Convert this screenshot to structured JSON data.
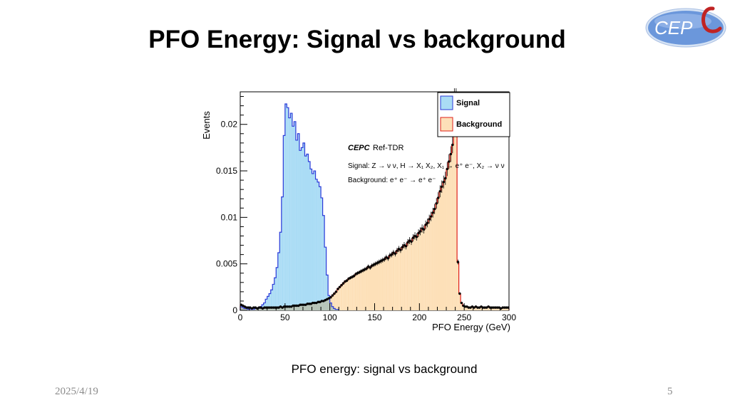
{
  "slide": {
    "title": "PFO Energy: Signal vs background",
    "caption": "PFO energy: signal vs background",
    "date": "2025/4/19",
    "page_number": "5",
    "logo_text": "CEPC"
  },
  "colors": {
    "signal_fill": "#aadcf5",
    "signal_line": "#2b3ad9",
    "background_fill": "#fde0b8",
    "background_line": "#e0201a",
    "overlap_fill": "#b8c4b8",
    "logo_blue": "#5f8fd8"
  },
  "chart_data": {
    "type": "histogram",
    "xlabel": "PFO Energy (GeV)",
    "ylabel": "Events",
    "xlim": [
      0,
      300
    ],
    "ylim": [
      0,
      0.0235
    ],
    "x_ticks": [
      0,
      50,
      100,
      150,
      200,
      250,
      300
    ],
    "y_ticks": [
      0,
      0.005,
      0.01,
      0.015,
      0.02
    ],
    "y_tick_labels": [
      "0",
      "0.005",
      "0.01",
      "0.015",
      "0.02"
    ],
    "bin_width": 2,
    "legend": {
      "position": "top-right",
      "entries": [
        "Signal",
        "Background"
      ]
    },
    "annotations": {
      "experiment": "CEPC",
      "experiment_suffix": "Ref-TDR",
      "signal_process": "Signal: Z → ν ν, H → X₁ X₂, X₁ → e⁺ e⁻, X₂ → ν ν",
      "background_process": "Background: e⁺ e⁻ → e⁺ e⁻"
    },
    "series": [
      {
        "name": "Signal",
        "x": [
          0,
          2,
          4,
          6,
          8,
          10,
          12,
          14,
          16,
          18,
          20,
          22,
          24,
          26,
          28,
          30,
          32,
          34,
          36,
          38,
          40,
          42,
          44,
          46,
          48,
          50,
          52,
          54,
          56,
          58,
          60,
          62,
          64,
          66,
          68,
          70,
          72,
          74,
          76,
          78,
          80,
          82,
          84,
          86,
          88,
          90,
          92,
          94,
          96,
          98,
          100,
          102,
          104,
          106,
          108
        ],
        "y": [
          0.0004,
          0.0003,
          0.0002,
          0.0002,
          0.0001,
          0.0001,
          0.0001,
          0.0001,
          0.0002,
          0.0002,
          0.0003,
          0.0004,
          0.0006,
          0.0008,
          0.0012,
          0.0015,
          0.0018,
          0.0022,
          0.0028,
          0.0035,
          0.0046,
          0.0062,
          0.0084,
          0.0122,
          0.0188,
          0.0222,
          0.0218,
          0.0207,
          0.0212,
          0.0198,
          0.0203,
          0.0183,
          0.019,
          0.0172,
          0.0175,
          0.018,
          0.0166,
          0.0168,
          0.016,
          0.0152,
          0.0147,
          0.015,
          0.0141,
          0.0138,
          0.0133,
          0.0121,
          0.0102,
          0.0068,
          0.0038,
          0.0016,
          0.0008,
          0.0004,
          0.0002,
          0.0001,
          0.0001
        ]
      },
      {
        "name": "Background",
        "x": [
          0,
          2,
          4,
          6,
          8,
          10,
          12,
          14,
          16,
          18,
          20,
          22,
          24,
          26,
          28,
          30,
          32,
          34,
          36,
          38,
          40,
          42,
          44,
          46,
          48,
          50,
          52,
          54,
          56,
          58,
          60,
          62,
          64,
          66,
          68,
          70,
          72,
          74,
          76,
          78,
          80,
          82,
          84,
          86,
          88,
          90,
          92,
          94,
          96,
          98,
          100,
          102,
          104,
          106,
          108,
          110,
          112,
          114,
          116,
          118,
          120,
          122,
          124,
          126,
          128,
          130,
          132,
          134,
          136,
          138,
          140,
          142,
          144,
          146,
          148,
          150,
          152,
          154,
          156,
          158,
          160,
          162,
          164,
          166,
          168,
          170,
          172,
          174,
          176,
          178,
          180,
          182,
          184,
          186,
          188,
          190,
          192,
          194,
          196,
          198,
          200,
          202,
          204,
          206,
          208,
          210,
          212,
          214,
          216,
          218,
          220,
          222,
          224,
          226,
          228,
          230,
          232,
          234,
          236,
          238,
          240,
          242,
          244,
          246,
          248,
          250,
          252,
          254,
          256,
          258,
          260,
          262,
          264,
          266,
          268,
          270,
          272,
          274,
          276,
          278,
          280,
          282,
          284,
          286,
          288,
          290,
          292,
          294,
          296,
          298
        ],
        "y": [
          0.0006,
          0.0005,
          0.0004,
          0.0003,
          0.0003,
          0.0003,
          0.0002,
          0.0003,
          0.0003,
          0.0002,
          0.0003,
          0.0003,
          0.0002,
          0.0003,
          0.0003,
          0.0003,
          0.0003,
          0.0003,
          0.0003,
          0.0003,
          0.0003,
          0.0003,
          0.0004,
          0.0003,
          0.0004,
          0.0004,
          0.0004,
          0.0004,
          0.0004,
          0.0005,
          0.0005,
          0.0005,
          0.0005,
          0.0006,
          0.0006,
          0.0006,
          0.0006,
          0.0007,
          0.0007,
          0.0007,
          0.0008,
          0.0008,
          0.0008,
          0.0009,
          0.0009,
          0.001,
          0.001,
          0.0011,
          0.0012,
          0.0013,
          0.0014,
          0.0016,
          0.0018,
          0.002,
          0.0023,
          0.0025,
          0.0027,
          0.0029,
          0.0031,
          0.0032,
          0.0034,
          0.0035,
          0.0036,
          0.0037,
          0.0039,
          0.004,
          0.0041,
          0.0042,
          0.0043,
          0.0044,
          0.0045,
          0.0047,
          0.0046,
          0.0048,
          0.0049,
          0.005,
          0.0051,
          0.0052,
          0.0053,
          0.0054,
          0.0055,
          0.0057,
          0.0056,
          0.0059,
          0.006,
          0.0062,
          0.0061,
          0.0064,
          0.0066,
          0.0065,
          0.0068,
          0.007,
          0.0069,
          0.0073,
          0.0075,
          0.0074,
          0.0078,
          0.008,
          0.0079,
          0.0083,
          0.0085,
          0.0088,
          0.0087,
          0.0092,
          0.0094,
          0.0098,
          0.0101,
          0.0105,
          0.0109,
          0.0115,
          0.0121,
          0.0128,
          0.0133,
          0.0138,
          0.0142,
          0.0152,
          0.016,
          0.0168,
          0.0178,
          0.0232,
          0.0232,
          0.0052,
          0.0018,
          0.0008,
          0.0005,
          0.0004,
          0.0004,
          0.0003,
          0.0003,
          0.0004,
          0.0003,
          0.0004,
          0.0003,
          0.0003,
          0.0004,
          0.0003,
          0.0003,
          0.0003,
          0.0004,
          0.0003,
          0.0003,
          0.0003,
          0.0003,
          0.0003,
          0.0003,
          0.0002,
          0.0003,
          0.0003,
          0.0003,
          0.0003
        ]
      }
    ]
  }
}
